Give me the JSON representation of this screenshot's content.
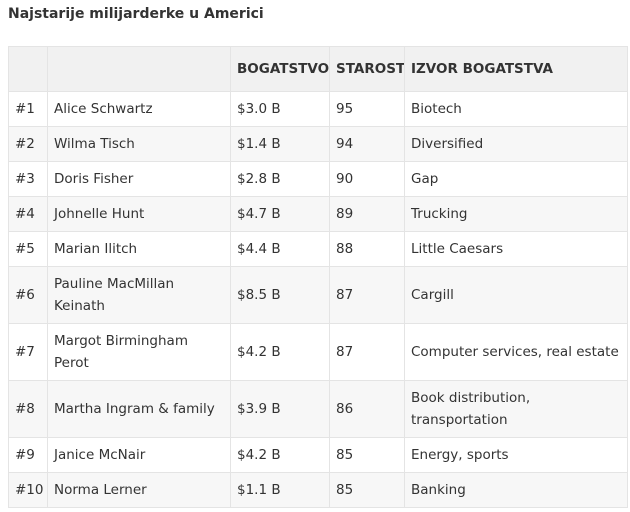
{
  "title": "Najstarije milijarderke u Americi",
  "table": {
    "headers": [
      "",
      "",
      "BOGATSTVO",
      "STAROST",
      "IZVOR BOGATSTVA"
    ],
    "rows": [
      {
        "rank": "#1",
        "name": "Alice Schwartz",
        "wealth": "$3.0 B",
        "age": "95",
        "source": "Biotech"
      },
      {
        "rank": "#2",
        "name": "Wilma Tisch",
        "wealth": "$1.4 B",
        "age": "94",
        "source": "Diversified"
      },
      {
        "rank": "#3",
        "name": "Doris Fisher",
        "wealth": "$2.8 B",
        "age": "90",
        "source": "Gap"
      },
      {
        "rank": "#4",
        "name": "Johnelle Hunt",
        "wealth": "$4.7 B",
        "age": "89",
        "source": "Trucking"
      },
      {
        "rank": "#5",
        "name": "Marian Ilitch",
        "wealth": "$4.4 B",
        "age": "88",
        "source": "Little Caesars"
      },
      {
        "rank": "#6",
        "name": "Pauline MacMillan Keinath",
        "wealth": "$8.5 B",
        "age": "87",
        "source": "Cargill"
      },
      {
        "rank": "#7",
        "name": "Margot Birmingham Perot",
        "wealth": "$4.2 B",
        "age": "87",
        "source": "Computer services, real estate"
      },
      {
        "rank": "#8",
        "name": "Martha Ingram & family",
        "wealth": "$3.9 B",
        "age": "86",
        "source": "Book distribution, transportation"
      },
      {
        "rank": "#9",
        "name": "Janice McNair",
        "wealth": "$4.2 B",
        "age": "85",
        "source": "Energy, sports"
      },
      {
        "rank": "#10",
        "name": "Norma Lerner",
        "wealth": "$1.1 B",
        "age": "85",
        "source": "Banking"
      }
    ]
  }
}
